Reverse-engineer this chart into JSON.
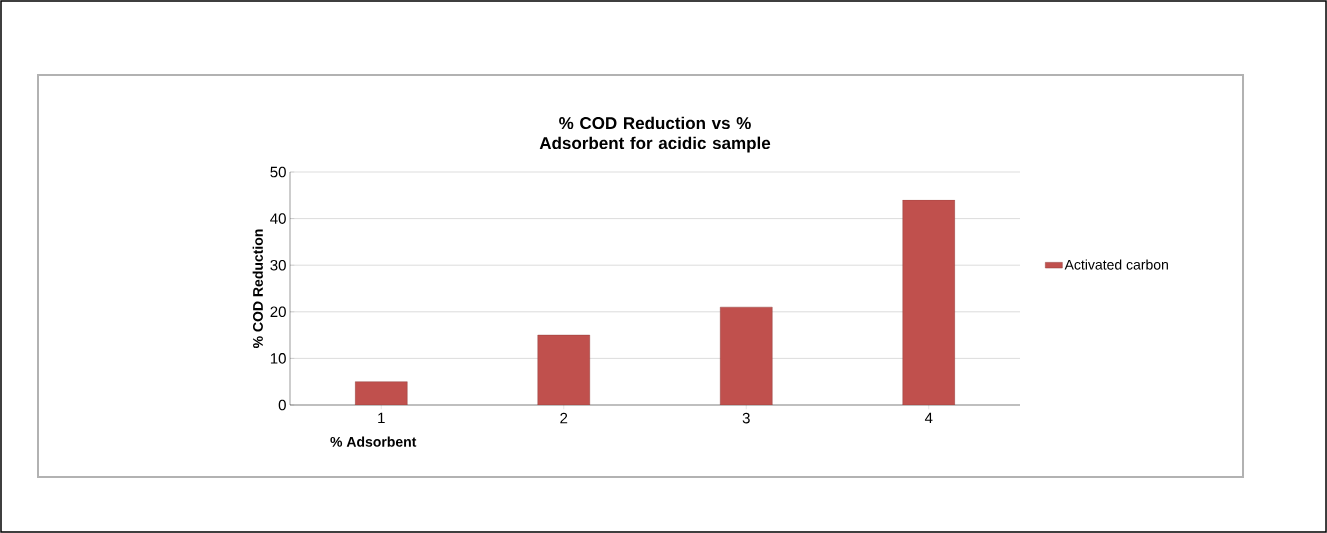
{
  "chart_data": {
    "type": "bar",
    "title": "% COD Reduction vs % Adsorbent for acidic sample",
    "xlabel": "% Adsorbent",
    "ylabel": "% COD Reduction",
    "categories": [
      "1",
      "2",
      "3",
      "4"
    ],
    "series": [
      {
        "name": "Activated carbon",
        "color": "#c0504d",
        "values": [
          5,
          15,
          21,
          44
        ]
      }
    ],
    "ylim": [
      0,
      50
    ],
    "yticks": [
      0,
      10,
      20,
      30,
      40,
      50
    ],
    "grid": "y",
    "legend": "right"
  }
}
